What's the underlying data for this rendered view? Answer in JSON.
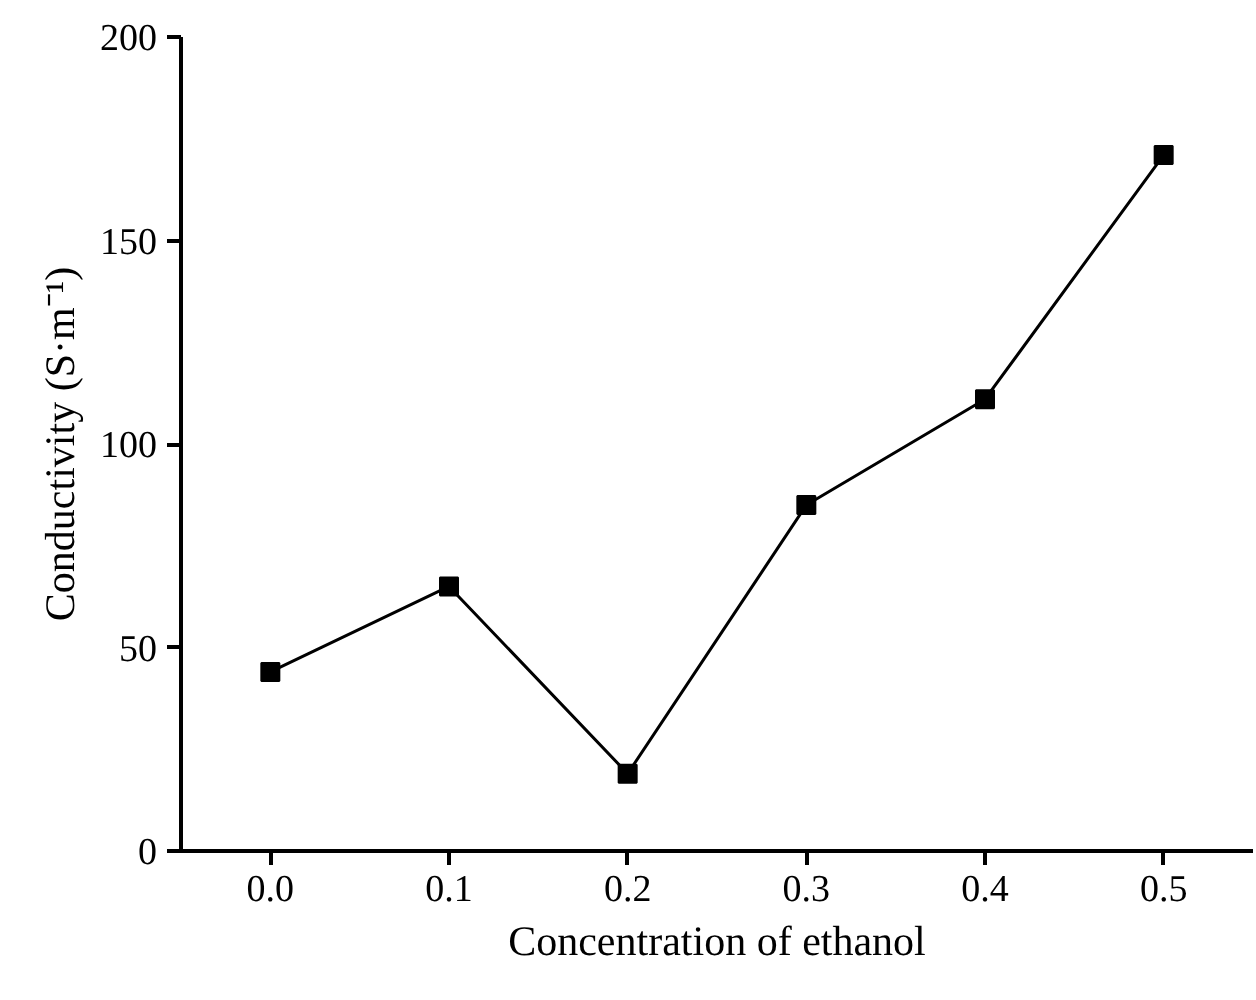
{
  "chart_data": {
    "type": "line",
    "xlabel": "Concentration of ethanol",
    "ylabel": "Conductivity (S·m⁻¹)",
    "x": [
      0.0,
      0.1,
      0.2,
      0.3,
      0.4,
      0.5
    ],
    "series": [
      {
        "color": "#000000",
        "values": [
          44,
          65,
          19,
          85,
          111,
          171
        ]
      }
    ],
    "xlim": [
      -0.05,
      0.55
    ],
    "xticks": [
      {
        "value": 0.0,
        "label": "0.0"
      },
      {
        "value": 0.1,
        "label": "0.1"
      },
      {
        "value": 0.2,
        "label": "0.2"
      },
      {
        "value": 0.3,
        "label": "0.3"
      },
      {
        "value": 0.4,
        "label": "0.4"
      },
      {
        "value": 0.5,
        "label": "0.5"
      }
    ],
    "ylim": [
      0,
      200
    ],
    "yticks": [
      0,
      50,
      100,
      150,
      200
    ],
    "marker": "square",
    "line_style": "solid",
    "grid": false
  }
}
